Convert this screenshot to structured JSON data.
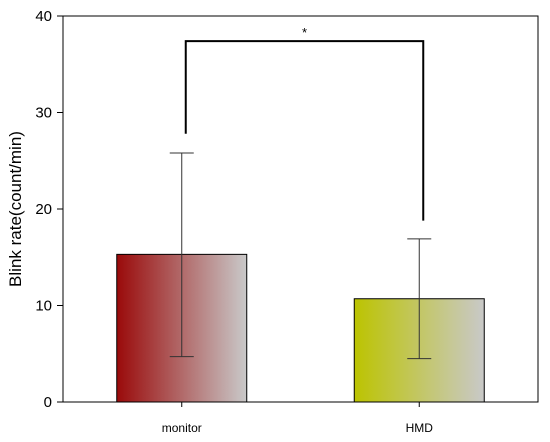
{
  "chart_data": {
    "type": "bar",
    "title": "",
    "xlabel": "",
    "ylabel": "Blink rate(count/min)",
    "ylim": [
      0,
      40
    ],
    "yticks": [
      0,
      10,
      20,
      30,
      40
    ],
    "grid": false,
    "categories": [
      "monitor",
      "HMD"
    ],
    "values": [
      15.3,
      10.7
    ],
    "error_upper": [
      25.8,
      16.9
    ],
    "error_lower": [
      4.7,
      4.5
    ],
    "bar_colors": [
      {
        "start": "#9a0a0a",
        "end": "#c9c9c9"
      },
      {
        "start": "#bcc400",
        "end": "#c9c9c9"
      }
    ],
    "significance": {
      "label": "*",
      "between": [
        0,
        1
      ],
      "level": 37.4,
      "left_drop_to": 27.8,
      "right_drop_to": 18.8
    }
  }
}
